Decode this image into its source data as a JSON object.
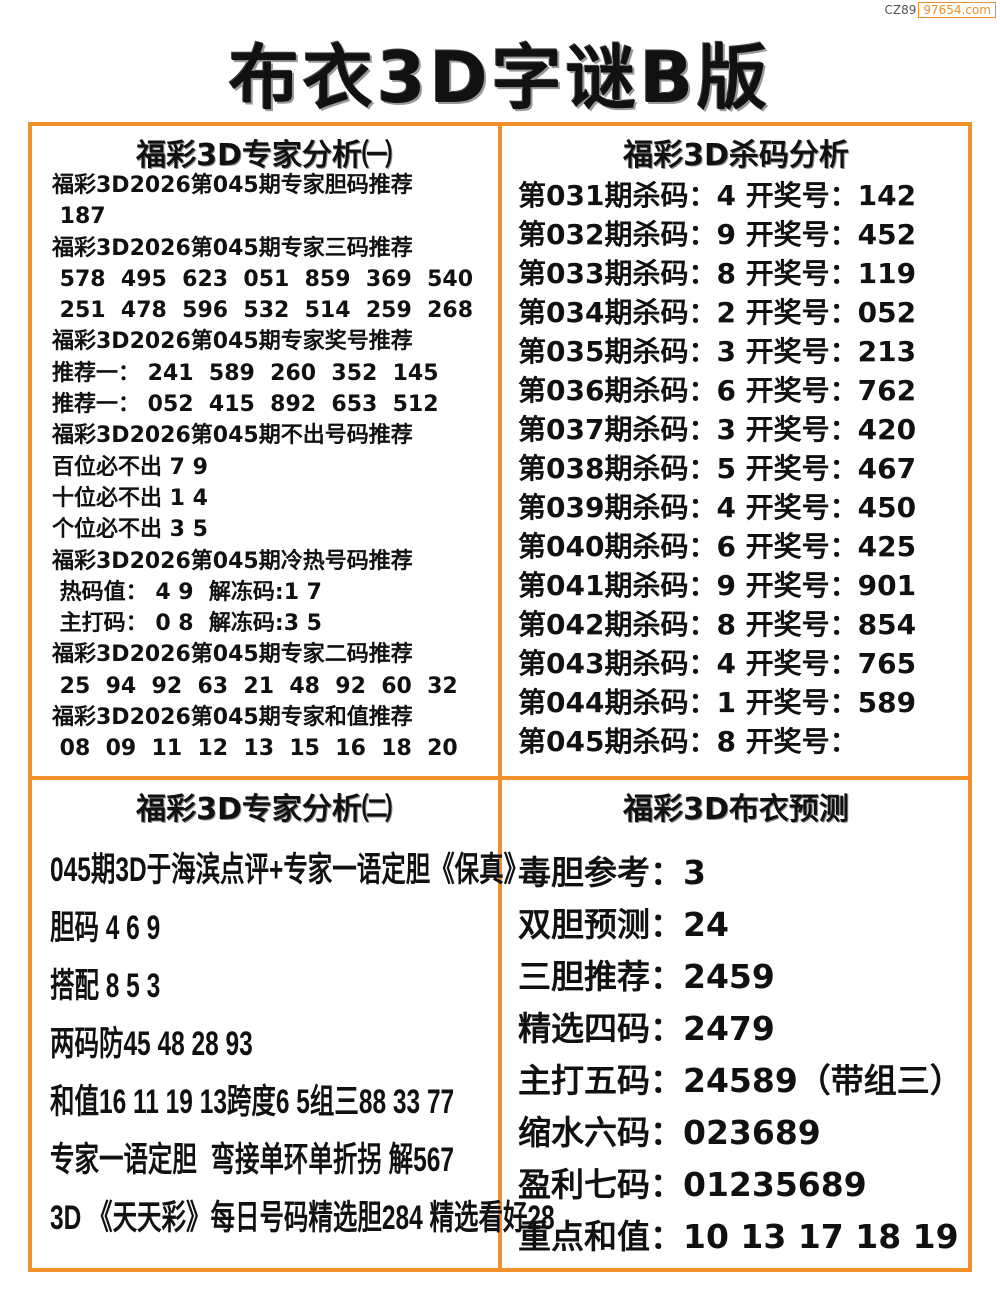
{
  "watermark": {
    "prefix": "CZ89",
    "site": "97654.com"
  },
  "title": "布衣3D字谜B版",
  "colors": {
    "border": "#f0902a"
  },
  "panel_expert1": {
    "heading": "福彩3D专家分析㈠",
    "lines": [
      "福彩3D2026第045期专家胆码推荐",
      " 187",
      "福彩3D2026第045期专家三码推荐",
      " 578  495  623  051  859  369  540",
      " 251  478  596  532  514  259  268",
      "福彩3D2026第045期专家奖号推荐",
      "推荐一： 241  589  260  352  145",
      "推荐一： 052  415  892  653  512",
      "福彩3D2026第045期不出号码推荐",
      "百位必不出 7 9",
      "十位必不出 1 4",
      "个位必不出 3 5",
      "福彩3D2026第045期冷热号码推荐",
      " 热码值： 4 9  解冻码:1 7",
      " 主打码： 0 8  解冻码:3 5",
      "福彩3D2026第045期专家二码推荐",
      " 25  94  92  63  21  48  92  60  32",
      "福彩3D2026第045期专家和值推荐",
      " 08  09  11  12  13  15  16  18  20"
    ]
  },
  "panel_kill": {
    "heading": "福彩3D杀码分析",
    "lines": [
      "第031期杀码：4 开奖号：142",
      "第032期杀码：9 开奖号：452",
      "第033期杀码：8 开奖号：119",
      "第034期杀码：2 开奖号：052",
      "第035期杀码：3 开奖号：213",
      "第036期杀码：6 开奖号：762",
      "第037期杀码：3 开奖号：420",
      "第038期杀码：5 开奖号：467",
      "第039期杀码：4 开奖号：450",
      "第040期杀码：6 开奖号：425",
      "第041期杀码：9 开奖号：901",
      "第042期杀码：8 开奖号：854",
      "第043期杀码：4 开奖号：765",
      "第044期杀码：1 开奖号：589",
      "第045期杀码：8 开奖号："
    ]
  },
  "panel_expert2": {
    "heading": "福彩3D专家分析㈡",
    "lines": [
      "045期3D于海滨点评+专家一语定胆《保真》",
      "胆码 4 6 9",
      "搭配 8 5 3",
      "两码防45 48 28 93",
      "和值16 11 19 13跨度6 5组三88 33 77",
      "专家一语定胆  弯接单环单折拐 解567",
      "3D 《天天彩》每日号码精选胆284 精选看好28"
    ]
  },
  "panel_buyi": {
    "heading": "福彩3D布衣预测",
    "lines": [
      "毒胆参考：3",
      "双胆预测：24",
      "三胆推荐：2459",
      "精选四码：2479",
      "主打五码：24589（带组三）",
      "缩水六码：023689",
      "盈利七码：01235689",
      "重点和值：10 13 17 18 19"
    ]
  }
}
